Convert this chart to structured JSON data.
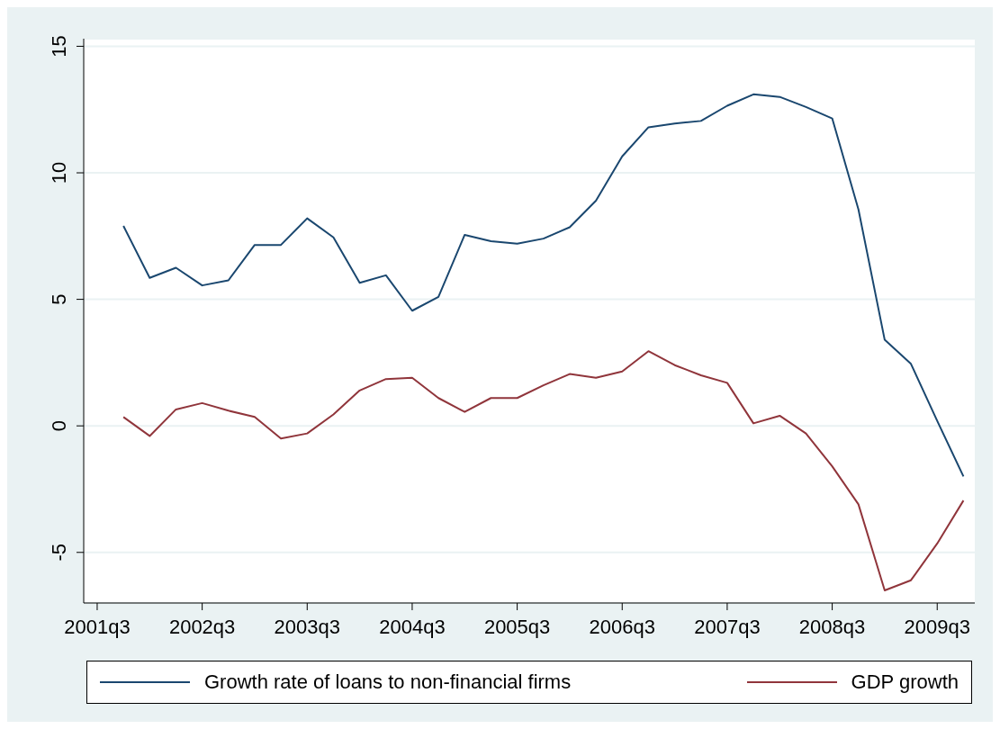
{
  "chart_data": {
    "type": "line",
    "x": [
      "2001-10",
      "2002-01",
      "2002-04",
      "2002-07",
      "2002-10",
      "2003-01",
      "2003-04",
      "2003-07",
      "2003-10",
      "2004-01",
      "2004-04",
      "2004-07",
      "2004-10",
      "2005-01",
      "2005-04",
      "2005-07",
      "2005-10",
      "2006-01",
      "2006-04",
      "2006-07",
      "2006-10",
      "2007-01",
      "2007-04",
      "2007-07",
      "2007-10",
      "2008-01",
      "2008-04",
      "2008-07",
      "2008-10",
      "2009-01",
      "2009-04",
      "2009-07",
      "2009-10"
    ],
    "series": [
      {
        "name": "Growth rate of loans to non-financial firms",
        "color": "#1a476f",
        "values": [
          7.9,
          5.85,
          6.25,
          5.55,
          5.75,
          7.15,
          7.15,
          8.2,
          7.45,
          5.65,
          5.95,
          4.55,
          5.1,
          7.55,
          7.3,
          7.2,
          7.4,
          7.85,
          8.9,
          10.65,
          11.8,
          11.95,
          12.05,
          12.65,
          13.1,
          13.0,
          12.6,
          12.15,
          8.55,
          3.4,
          2.45,
          0.2,
          -2.0
        ]
      },
      {
        "name": "GDP growth",
        "color": "#90353b",
        "values": [
          0.35,
          -0.4,
          0.65,
          0.9,
          0.6,
          0.35,
          -0.5,
          -0.3,
          0.45,
          1.4,
          1.85,
          1.9,
          1.1,
          0.55,
          1.1,
          1.1,
          1.6,
          2.05,
          1.9,
          2.15,
          2.95,
          2.4,
          2.0,
          1.7,
          0.1,
          0.4,
          -0.3,
          -1.6,
          -3.1,
          -6.5,
          -6.1,
          -4.65,
          -2.95
        ]
      }
    ],
    "xlim": [
      "2001-05-15",
      "2009-11-10"
    ],
    "xticks": [
      {
        "value": "2001-07",
        "label": "2001q3"
      },
      {
        "value": "2002-07",
        "label": "2002q3"
      },
      {
        "value": "2003-07",
        "label": "2003q3"
      },
      {
        "value": "2004-07",
        "label": "2004q3"
      },
      {
        "value": "2005-07",
        "label": "2005q3"
      },
      {
        "value": "2006-07",
        "label": "2006q3"
      },
      {
        "value": "2007-07",
        "label": "2007q3"
      },
      {
        "value": "2008-07",
        "label": "2008q3"
      },
      {
        "value": "2009-07",
        "label": "2009q3"
      }
    ],
    "ylim": [
      -7,
      15.3
    ],
    "yticks": [
      -5,
      0,
      5,
      10,
      15
    ],
    "grid": "y",
    "legend": "bottom",
    "marker": "none",
    "line_style": "solid"
  }
}
